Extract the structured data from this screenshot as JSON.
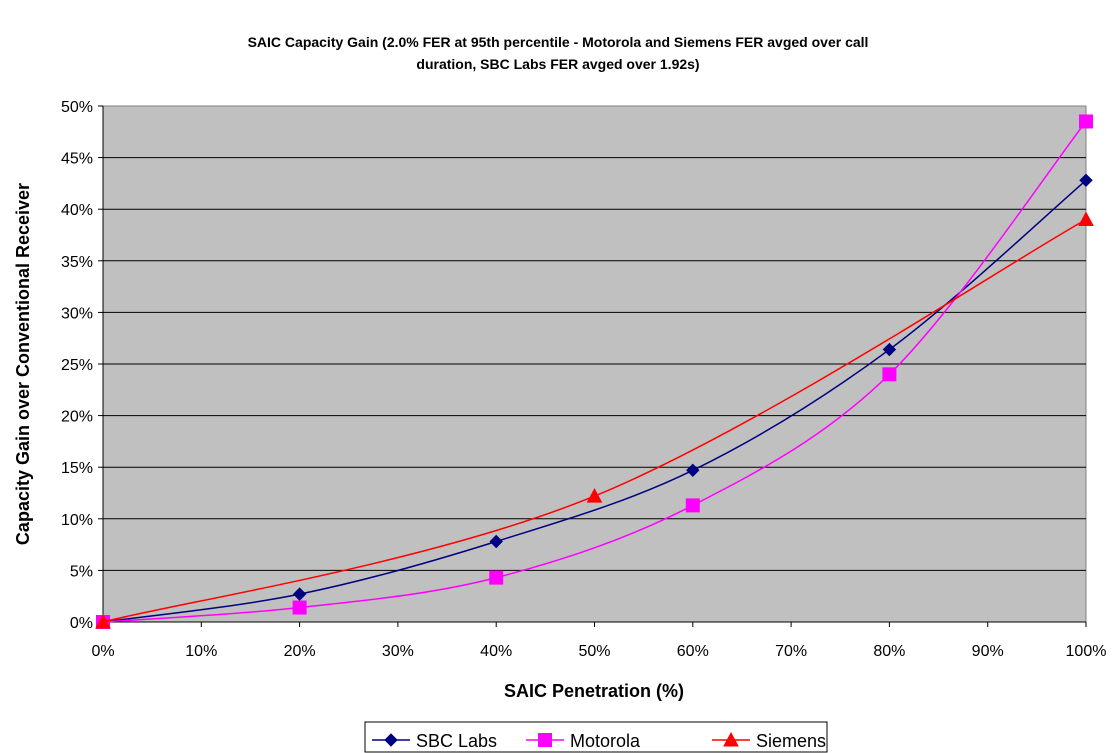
{
  "chart_data": {
    "type": "line",
    "title": [
      "SAIC Capacity Gain (2.0% FER at 95th percentile - Motorola and Siemens FER avged over call",
      "duration, SBC Labs FER avged over 1.92s)"
    ],
    "xlabel": "SAIC Penetration (%)",
    "ylabel": "Capacity Gain over Conventional Receiver",
    "xlim": [
      0,
      100
    ],
    "ylim": [
      0,
      50
    ],
    "x_ticks": [
      0,
      10,
      20,
      30,
      40,
      50,
      60,
      70,
      80,
      90,
      100
    ],
    "y_ticks": [
      0,
      5,
      10,
      15,
      20,
      25,
      30,
      35,
      40,
      45,
      50
    ],
    "x_tick_labels": [
      "0%",
      "10%",
      "20%",
      "30%",
      "40%",
      "50%",
      "60%",
      "70%",
      "80%",
      "90%",
      "100%"
    ],
    "y_tick_labels": [
      "0%",
      "5%",
      "10%",
      "15%",
      "20%",
      "25%",
      "30%",
      "35%",
      "40%",
      "45%",
      "50%"
    ],
    "grid": "horizontal",
    "plot_background": "#c0c0c0",
    "legend_position": "bottom",
    "series": [
      {
        "name": "SBC Labs",
        "color": "#000080",
        "marker": "diamond",
        "x": [
          0,
          20,
          40,
          60,
          80,
          100
        ],
        "y": [
          0,
          2.7,
          7.8,
          14.7,
          26.4,
          42.8
        ]
      },
      {
        "name": "Motorola",
        "color": "#ff00ff",
        "marker": "square",
        "x": [
          0,
          20,
          40,
          60,
          80,
          100
        ],
        "y": [
          0,
          1.4,
          4.3,
          11.3,
          24.0,
          48.5
        ]
      },
      {
        "name": "Siemens",
        "color": "#ff0000",
        "marker": "triangle",
        "x": [
          0,
          50,
          100
        ],
        "y": [
          0,
          12.2,
          39.0
        ]
      }
    ]
  }
}
